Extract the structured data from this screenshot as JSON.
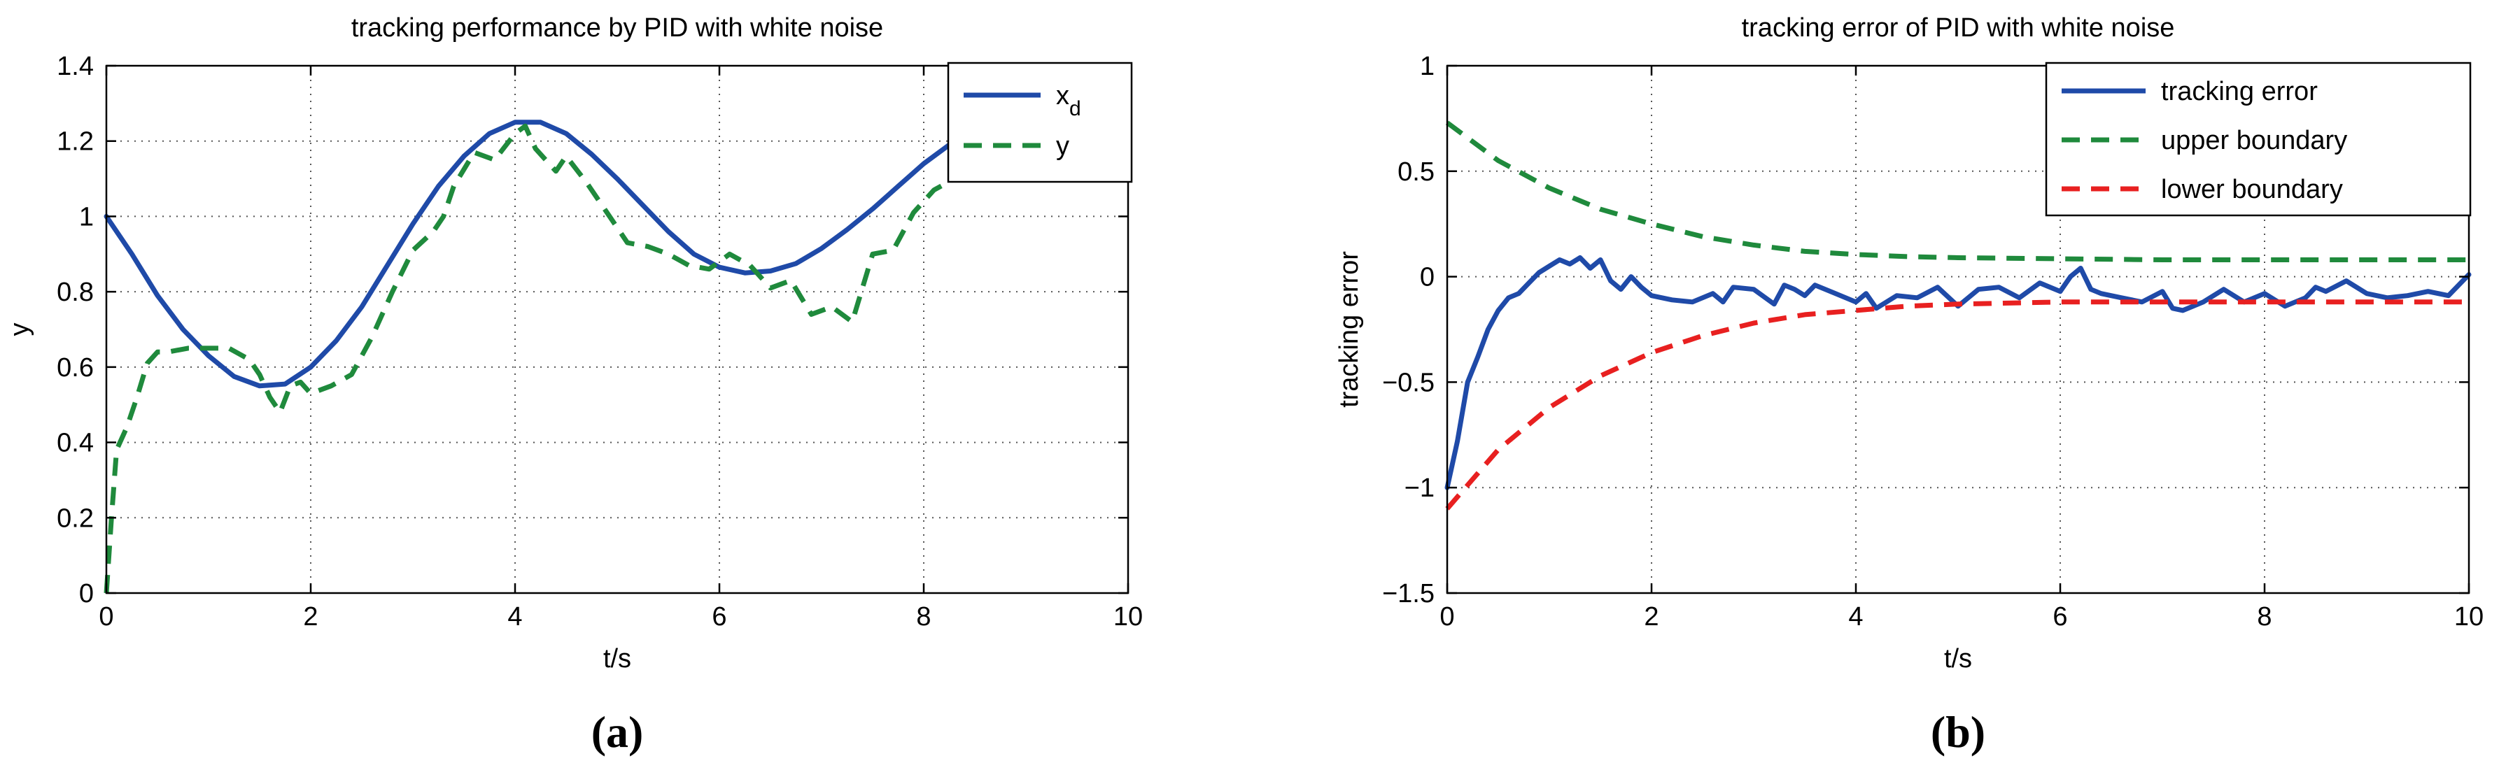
{
  "chart_data": [
    {
      "id": "a",
      "type": "line",
      "title": "tracking performance by PID with white noise",
      "xlabel": "t/s",
      "ylabel": "y",
      "xlim": [
        0,
        10
      ],
      "ylim": [
        0,
        1.4
      ],
      "xticks": [
        0,
        2,
        4,
        6,
        8,
        10
      ],
      "yticks": [
        0,
        0.2,
        0.4,
        0.6,
        0.8,
        1,
        1.2,
        1.4
      ],
      "xtick_labels": [
        "0",
        "2",
        "4",
        "6",
        "8",
        "10"
      ],
      "ytick_labels": [
        "0",
        "0.2",
        "0.4",
        "0.6",
        "0.8",
        "1",
        "1.2",
        "1.4"
      ],
      "grid": true,
      "legend_position": "top-right",
      "caption": "(a)",
      "series": [
        {
          "name": "x",
          "name_subscript": "d",
          "style": "solid",
          "color": "#1f4aa8",
          "x": [
            0,
            0.25,
            0.5,
            0.75,
            1.0,
            1.25,
            1.5,
            1.75,
            2.0,
            2.25,
            2.5,
            2.75,
            3.0,
            3.25,
            3.5,
            3.75,
            4.0,
            4.25,
            4.5,
            4.75,
            5.0,
            5.25,
            5.5,
            5.75,
            6.0,
            6.25,
            6.5,
            6.75,
            7.0,
            7.25,
            7.5,
            7.75,
            8.0,
            8.25
          ],
          "y": [
            1.0,
            0.9,
            0.79,
            0.7,
            0.63,
            0.575,
            0.55,
            0.555,
            0.6,
            0.67,
            0.76,
            0.87,
            0.98,
            1.08,
            1.16,
            1.22,
            1.25,
            1.25,
            1.22,
            1.165,
            1.1,
            1.03,
            0.96,
            0.9,
            0.865,
            0.85,
            0.855,
            0.875,
            0.915,
            0.965,
            1.02,
            1.08,
            1.14,
            1.19
          ]
        },
        {
          "name": "y",
          "style": "dashed",
          "color": "#1f8a3c",
          "x": [
            0,
            0.05,
            0.1,
            0.2,
            0.3,
            0.4,
            0.5,
            0.6,
            0.8,
            1.0,
            1.2,
            1.4,
            1.5,
            1.6,
            1.7,
            1.8,
            1.9,
            2.0,
            2.2,
            2.4,
            2.6,
            2.8,
            3.0,
            3.2,
            3.3,
            3.4,
            3.6,
            3.8,
            4.0,
            4.1,
            4.2,
            4.4,
            4.5,
            4.7,
            4.9,
            5.1,
            5.3,
            5.5,
            5.7,
            5.9,
            6.1,
            6.3,
            6.5,
            6.7,
            6.9,
            7.1,
            7.3,
            7.5,
            7.7,
            7.9,
            8.1,
            8.3
          ],
          "y": [
            0.0,
            0.2,
            0.38,
            0.44,
            0.52,
            0.61,
            0.64,
            0.64,
            0.65,
            0.65,
            0.65,
            0.62,
            0.58,
            0.52,
            0.48,
            0.55,
            0.56,
            0.53,
            0.55,
            0.58,
            0.68,
            0.8,
            0.91,
            0.96,
            1.0,
            1.08,
            1.17,
            1.15,
            1.22,
            1.24,
            1.18,
            1.12,
            1.16,
            1.09,
            1.01,
            0.93,
            0.92,
            0.9,
            0.87,
            0.86,
            0.9,
            0.87,
            0.81,
            0.83,
            0.74,
            0.76,
            0.72,
            0.9,
            0.91,
            1.01,
            1.07,
            1.1
          ]
        }
      ]
    },
    {
      "id": "b",
      "type": "line",
      "title": "tracking error of PID with white noise",
      "xlabel": "t/s",
      "ylabel": "tracking error",
      "xlim": [
        0,
        10
      ],
      "ylim": [
        -1.5,
        1
      ],
      "xticks": [
        0,
        2,
        4,
        6,
        8,
        10
      ],
      "yticks": [
        -1.5,
        -1,
        -0.5,
        0,
        0.5,
        1
      ],
      "xtick_labels": [
        "0",
        "2",
        "4",
        "6",
        "8",
        "10"
      ],
      "ytick_labels": [
        "−1.5",
        "−1",
        "−0.5",
        "0",
        "0.5",
        "1"
      ],
      "grid": true,
      "legend_position": "top-right",
      "caption": "(b)",
      "series": [
        {
          "name": "tracking error",
          "style": "solid",
          "color": "#1f4aa8",
          "x": [
            0,
            0.1,
            0.2,
            0.3,
            0.4,
            0.5,
            0.6,
            0.7,
            0.8,
            0.9,
            1.0,
            1.1,
            1.2,
            1.3,
            1.4,
            1.5,
            1.6,
            1.7,
            1.8,
            1.9,
            2.0,
            2.2,
            2.4,
            2.6,
            2.7,
            2.8,
            3.0,
            3.2,
            3.3,
            3.4,
            3.5,
            3.6,
            3.8,
            4.0,
            4.1,
            4.2,
            4.4,
            4.6,
            4.8,
            5.0,
            5.2,
            5.4,
            5.6,
            5.8,
            6.0,
            6.1,
            6.2,
            6.3,
            6.4,
            6.6,
            6.8,
            7.0,
            7.1,
            7.2,
            7.4,
            7.6,
            7.8,
            8.0,
            8.2,
            8.4,
            8.5,
            8.6,
            8.8,
            9.0,
            9.2,
            9.4,
            9.6,
            9.8,
            10.0
          ],
          "y": [
            -1.0,
            -0.78,
            -0.5,
            -0.38,
            -0.25,
            -0.16,
            -0.1,
            -0.08,
            -0.03,
            0.02,
            0.05,
            0.08,
            0.06,
            0.09,
            0.04,
            0.08,
            -0.02,
            -0.06,
            0.0,
            -0.05,
            -0.09,
            -0.11,
            -0.12,
            -0.08,
            -0.12,
            -0.05,
            -0.06,
            -0.13,
            -0.04,
            -0.06,
            -0.09,
            -0.04,
            -0.08,
            -0.12,
            -0.08,
            -0.15,
            -0.09,
            -0.1,
            -0.05,
            -0.14,
            -0.06,
            -0.05,
            -0.1,
            -0.03,
            -0.07,
            0.0,
            0.04,
            -0.06,
            -0.08,
            -0.1,
            -0.12,
            -0.07,
            -0.15,
            -0.16,
            -0.12,
            -0.06,
            -0.12,
            -0.08,
            -0.14,
            -0.1,
            -0.05,
            -0.07,
            -0.02,
            -0.08,
            -0.1,
            -0.09,
            -0.07,
            -0.09,
            0.01
          ]
        },
        {
          "name": "upper boundary",
          "style": "dashed",
          "color": "#1f8a3c",
          "x": [
            0,
            0.5,
            1.0,
            1.5,
            2.0,
            2.5,
            3.0,
            3.5,
            4.0,
            4.5,
            5.0,
            6.0,
            7.0,
            8.0,
            9.0,
            10.0
          ],
          "y": [
            0.73,
            0.55,
            0.42,
            0.32,
            0.25,
            0.19,
            0.15,
            0.12,
            0.105,
            0.095,
            0.09,
            0.085,
            0.08,
            0.08,
            0.08,
            0.08
          ]
        },
        {
          "name": "lower boundary",
          "style": "dashed",
          "color": "#e82020",
          "x": [
            0,
            0.5,
            1.0,
            1.5,
            2.0,
            2.5,
            3.0,
            3.5,
            4.0,
            4.5,
            5.0,
            6.0,
            7.0,
            8.0,
            9.0,
            10.0
          ],
          "y": [
            -1.1,
            -0.82,
            -0.62,
            -0.47,
            -0.36,
            -0.28,
            -0.22,
            -0.18,
            -0.16,
            -0.14,
            -0.13,
            -0.12,
            -0.12,
            -0.12,
            -0.12,
            -0.12
          ]
        }
      ]
    }
  ]
}
